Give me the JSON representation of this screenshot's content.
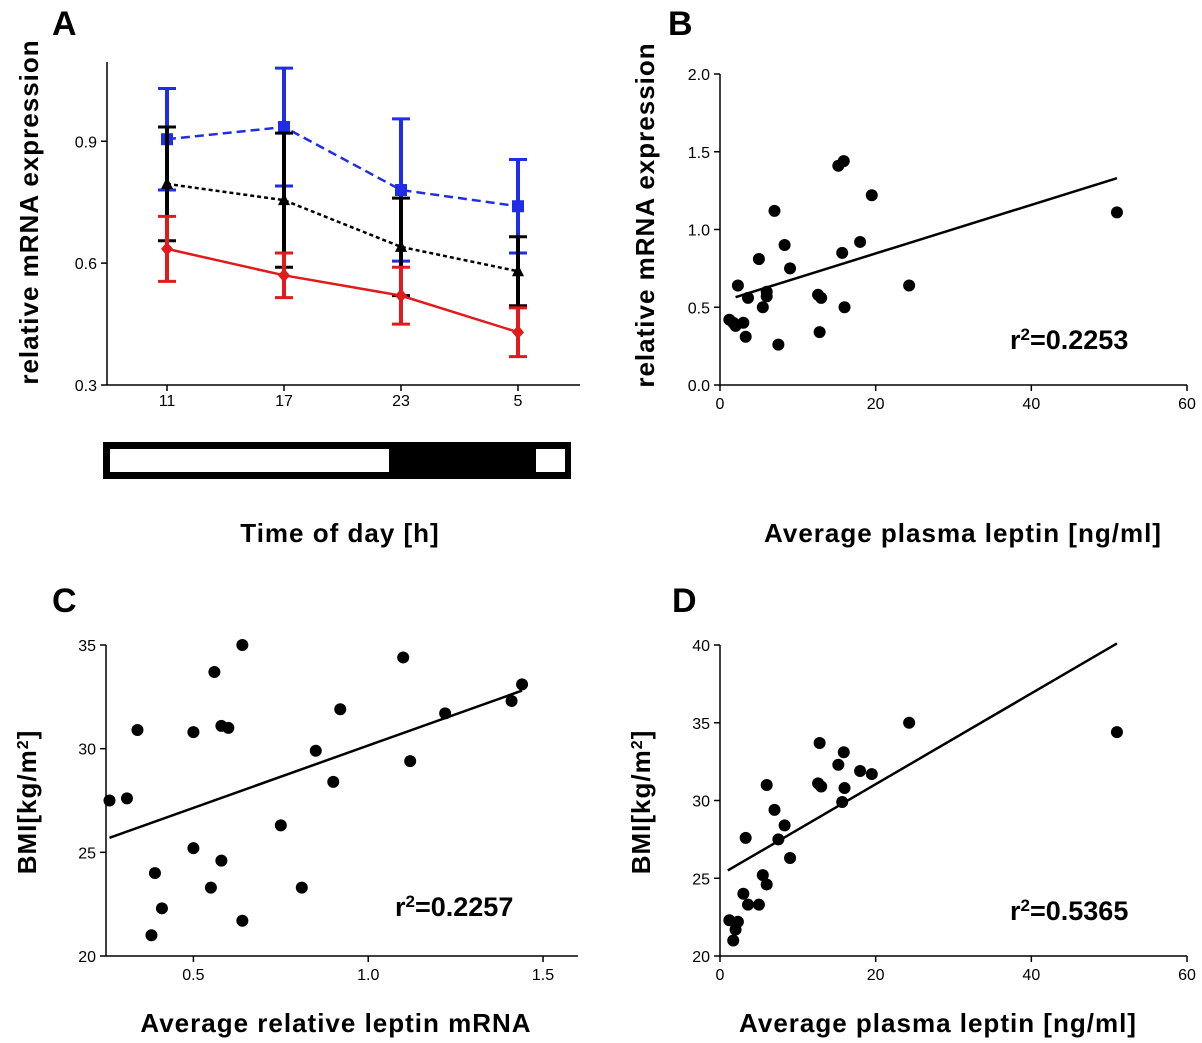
{
  "panels": [
    {
      "label": "A",
      "chart_data": {
        "type": "line",
        "categories": [
          "11",
          "17",
          "23",
          "5"
        ],
        "ylabel": "relative mRNA expression",
        "xlabel": "Time of day  [h]",
        "ylim": [
          0.3,
          1.1
        ],
        "yticks": [
          "0.3",
          "0.6",
          "0.9"
        ],
        "series": [
          {
            "color": "#1f2ee6",
            "dash": "dashed",
            "marker": "square",
            "values": [
              0.905,
              0.935,
              0.78,
              0.74
            ],
            "err": [
              0.125,
              0.145,
              0.175,
              0.115
            ]
          },
          {
            "color": "#000000",
            "dash": "dotted",
            "marker": "triangle",
            "values": [
              0.795,
              0.755,
              0.64,
              0.58
            ],
            "err": [
              0.14,
              0.165,
              0.12,
              0.085
            ]
          },
          {
            "color": "#e01b1b",
            "dash": "solid",
            "marker": "diamond",
            "values": [
              0.635,
              0.57,
              0.52,
              0.43
            ],
            "err": [
              0.08,
              0.055,
              0.07,
              0.06
            ]
          }
        ],
        "light_dark_bar": [
          "light",
          "dark",
          "light"
        ]
      }
    },
    {
      "label": "B",
      "r2": "r2=0.2253",
      "chart_data": {
        "type": "scatter",
        "xlabel": "Average plasma leptin [ng/ml]",
        "ylabel": "relative mRNA expression",
        "xlim": [
          0,
          60
        ],
        "ylim": [
          0.0,
          2.0
        ],
        "xticks": [
          "0",
          "20",
          "40",
          "60"
        ],
        "yticks": [
          "0.0",
          "0.5",
          "1.0",
          "1.5",
          "2.0"
        ],
        "points": [
          [
            1.2,
            0.42
          ],
          [
            1.7,
            0.4
          ],
          [
            2.0,
            0.38
          ],
          [
            2.3,
            0.64
          ],
          [
            3.0,
            0.4
          ],
          [
            3.3,
            0.31
          ],
          [
            3.6,
            0.56
          ],
          [
            5.0,
            0.81
          ],
          [
            5.5,
            0.5
          ],
          [
            6.0,
            0.6
          ],
          [
            6.0,
            0.57
          ],
          [
            7.0,
            1.12
          ],
          [
            7.5,
            0.26
          ],
          [
            8.3,
            0.9
          ],
          [
            9.0,
            0.75
          ],
          [
            12.6,
            0.58
          ],
          [
            12.8,
            0.34
          ],
          [
            13.0,
            0.56
          ],
          [
            15.2,
            1.41
          ],
          [
            15.7,
            0.85
          ],
          [
            15.9,
            1.44
          ],
          [
            16.0,
            0.5
          ],
          [
            18.0,
            0.92
          ],
          [
            19.5,
            1.22
          ],
          [
            24.3,
            0.64
          ],
          [
            51.0,
            1.11
          ]
        ],
        "fit": [
          [
            2.0,
            0.565
          ],
          [
            51.0,
            1.33
          ]
        ]
      }
    },
    {
      "label": "C",
      "r2": "r2=0.2257",
      "chart_data": {
        "type": "scatter",
        "xlabel": "Average relative leptin mRNA",
        "ylabel": "BMI[kg/m2]",
        "xlim": [
          0.25,
          1.6
        ],
        "ylim": [
          20,
          35
        ],
        "xticks": [
          "0.5",
          "1.0",
          "1.5"
        ],
        "yticks": [
          "20",
          "25",
          "30",
          "35"
        ],
        "points": [
          [
            0.26,
            27.5
          ],
          [
            0.31,
            27.6
          ],
          [
            0.34,
            30.9
          ],
          [
            0.38,
            21.0
          ],
          [
            0.39,
            24.0
          ],
          [
            0.41,
            22.3
          ],
          [
            0.5,
            30.8
          ],
          [
            0.5,
            25.2
          ],
          [
            0.55,
            23.3
          ],
          [
            0.56,
            33.7
          ],
          [
            0.58,
            31.1
          ],
          [
            0.58,
            24.6
          ],
          [
            0.6,
            31.0
          ],
          [
            0.64,
            21.7
          ],
          [
            0.64,
            35.0
          ],
          [
            0.75,
            26.3
          ],
          [
            0.81,
            23.3
          ],
          [
            0.85,
            29.9
          ],
          [
            0.9,
            28.4
          ],
          [
            0.92,
            31.9
          ],
          [
            1.1,
            34.4
          ],
          [
            1.12,
            29.4
          ],
          [
            1.22,
            31.7
          ],
          [
            1.41,
            32.3
          ],
          [
            1.44,
            33.1
          ]
        ],
        "fit": [
          [
            0.26,
            25.7
          ],
          [
            1.44,
            32.8
          ]
        ]
      }
    },
    {
      "label": "D",
      "r2": "r2=0.5365",
      "chart_data": {
        "type": "scatter",
        "xlabel": "Average plasma leptin [ng/ml]",
        "ylabel": "BMI[kg/m2]",
        "xlim": [
          0,
          60
        ],
        "ylim": [
          20,
          40
        ],
        "xticks": [
          "0",
          "20",
          "40",
          "60"
        ],
        "yticks": [
          "20",
          "25",
          "30",
          "35",
          "40"
        ],
        "points": [
          [
            1.2,
            22.3
          ],
          [
            1.7,
            21.0
          ],
          [
            2.0,
            21.7
          ],
          [
            2.3,
            22.2
          ],
          [
            3.0,
            24.0
          ],
          [
            3.3,
            27.6
          ],
          [
            3.6,
            23.3
          ],
          [
            5.0,
            23.3
          ],
          [
            5.5,
            25.2
          ],
          [
            6.0,
            24.6
          ],
          [
            6.0,
            31.0
          ],
          [
            7.0,
            29.4
          ],
          [
            7.5,
            27.5
          ],
          [
            8.3,
            28.4
          ],
          [
            9.0,
            26.3
          ],
          [
            12.6,
            31.1
          ],
          [
            12.8,
            33.7
          ],
          [
            13.0,
            30.9
          ],
          [
            15.2,
            32.3
          ],
          [
            15.7,
            29.9
          ],
          [
            15.9,
            33.1
          ],
          [
            16.0,
            30.8
          ],
          [
            18.0,
            31.9
          ],
          [
            19.5,
            31.7
          ],
          [
            24.3,
            35.0
          ],
          [
            51.0,
            34.4
          ]
        ],
        "fit": [
          [
            1.0,
            25.5
          ],
          [
            51.0,
            40.1
          ]
        ]
      }
    }
  ]
}
